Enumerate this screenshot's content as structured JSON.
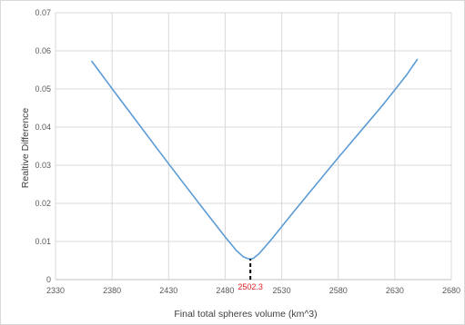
{
  "chart_data": {
    "type": "line",
    "title": "",
    "xlabel": "Final total spheres volume (km^3)",
    "ylabel": "Realtive Difference",
    "xlim": [
      2330,
      2680
    ],
    "ylim": [
      0,
      0.07
    ],
    "x_ticks": [
      2330,
      2380,
      2430,
      2480,
      2530,
      2580,
      2630,
      2680
    ],
    "y_ticks": [
      0,
      0.01,
      0.02,
      0.03,
      0.04,
      0.05,
      0.06,
      0.07
    ],
    "x_tick_labels": [
      "2330",
      "2380",
      "2430",
      "2480",
      "2530",
      "2580",
      "2630",
      "2680"
    ],
    "y_tick_labels": [
      "0",
      "0.01",
      "0.02",
      "0.03",
      "0.04",
      "0.05",
      "0.06",
      "0.07"
    ],
    "grid": "vertical and horizontal",
    "legend": "none",
    "series": [
      {
        "color": "#5b9bd5",
        "x": [
          2362,
          2380,
          2400,
          2420,
          2440,
          2460,
          2480,
          2490,
          2496,
          2500,
          2502.3,
          2505,
          2510,
          2520,
          2540,
          2560,
          2580,
          2600,
          2620,
          2640,
          2650
        ],
        "y": [
          0.0573,
          0.0501,
          0.0422,
          0.0343,
          0.0265,
          0.0188,
          0.0112,
          0.0076,
          0.006,
          0.0055,
          0.0054,
          0.0056,
          0.0068,
          0.0102,
          0.0176,
          0.0248,
          0.032,
          0.039,
          0.046,
          0.0535,
          0.0578
        ]
      }
    ],
    "annotations": [
      {
        "text": "2502.3",
        "x": 2502.3,
        "y_from": 0,
        "y_to": 0.0054,
        "color": "#e02020",
        "line_style": "dashed black"
      }
    ]
  }
}
